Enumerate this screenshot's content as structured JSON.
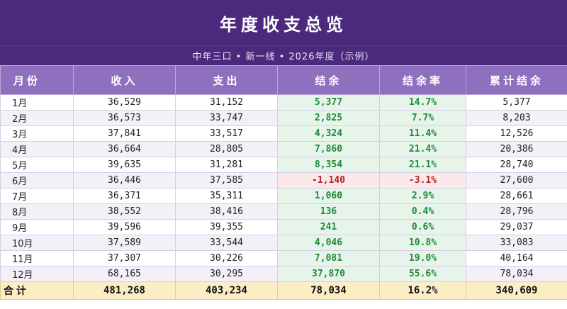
{
  "title": "年度收支总览",
  "subtitle": "中年三口 • 新一线  •  2026年度（示例）",
  "headers": [
    "月份",
    "收入",
    "支出",
    "结余",
    "结余率",
    "累计结余"
  ],
  "rows": [
    {
      "month": "1月",
      "income": "36,529",
      "expense": "31,152",
      "balance": "5,377",
      "rate": "14.7%",
      "cumulative": "5,377",
      "sign": "pos"
    },
    {
      "month": "2月",
      "income": "36,573",
      "expense": "33,747",
      "balance": "2,825",
      "rate": "7.7%",
      "cumulative": "8,203",
      "sign": "pos"
    },
    {
      "month": "3月",
      "income": "37,841",
      "expense": "33,517",
      "balance": "4,324",
      "rate": "11.4%",
      "cumulative": "12,526",
      "sign": "pos"
    },
    {
      "month": "4月",
      "income": "36,664",
      "expense": "28,805",
      "balance": "7,860",
      "rate": "21.4%",
      "cumulative": "20,386",
      "sign": "pos"
    },
    {
      "month": "5月",
      "income": "39,635",
      "expense": "31,281",
      "balance": "8,354",
      "rate": "21.1%",
      "cumulative": "28,740",
      "sign": "pos"
    },
    {
      "month": "6月",
      "income": "36,446",
      "expense": "37,585",
      "balance": "-1,140",
      "rate": "-3.1%",
      "cumulative": "27,600",
      "sign": "neg"
    },
    {
      "month": "7月",
      "income": "36,371",
      "expense": "35,311",
      "balance": "1,060",
      "rate": "2.9%",
      "cumulative": "28,661",
      "sign": "pos"
    },
    {
      "month": "8月",
      "income": "38,552",
      "expense": "38,416",
      "balance": "136",
      "rate": "0.4%",
      "cumulative": "28,796",
      "sign": "pos"
    },
    {
      "month": "9月",
      "income": "39,596",
      "expense": "39,355",
      "balance": "241",
      "rate": "0.6%",
      "cumulative": "29,037",
      "sign": "pos"
    },
    {
      "month": "10月",
      "income": "37,589",
      "expense": "33,544",
      "balance": "4,046",
      "rate": "10.8%",
      "cumulative": "33,083",
      "sign": "pos"
    },
    {
      "month": "11月",
      "income": "37,307",
      "expense": "30,226",
      "balance": "7,081",
      "rate": "19.0%",
      "cumulative": "40,164",
      "sign": "pos"
    },
    {
      "month": "12月",
      "income": "68,165",
      "expense": "30,295",
      "balance": "37,870",
      "rate": "55.6%",
      "cumulative": "78,034",
      "sign": "pos"
    }
  ],
  "total": {
    "label": "合计",
    "income": "481,268",
    "expense": "403,234",
    "balance": "78,034",
    "rate": "16.2%",
    "cumulative": "340,609"
  }
}
